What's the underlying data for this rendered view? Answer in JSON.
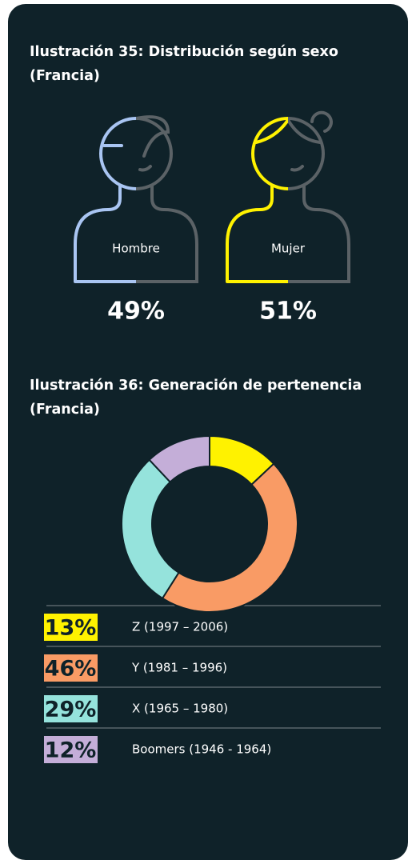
{
  "chart_data": [
    {
      "type": "pictogram",
      "title": "Ilustración 35: Distribución según sexo (Francia)",
      "categories": [
        "Hombre",
        "Mujer"
      ],
      "values": [
        49,
        51
      ],
      "value_labels": [
        "49%",
        "51%"
      ],
      "colors": [
        "#a9c5f2",
        "#fff200"
      ],
      "rest_color": "#5b6266"
    },
    {
      "type": "pie",
      "title": "Ilustración 36: Generación de pertenencia (Francia)",
      "categories": [
        "Z (1997 – 2006)",
        "Y (1981 – 1996)",
        "X (1965 – 1980)",
        "Boomers (1946 - 1964)"
      ],
      "values": [
        13,
        46,
        29,
        12
      ],
      "value_labels": [
        "13%",
        "46%",
        "29%",
        "12%"
      ],
      "colors": [
        "#fff200",
        "#f99b65",
        "#95e3dc",
        "#c4aed8"
      ],
      "donut": true
    }
  ]
}
